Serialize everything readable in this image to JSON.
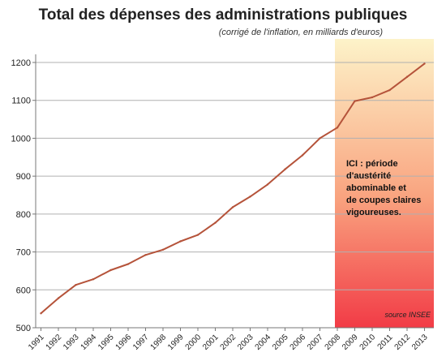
{
  "chart_data": {
    "type": "line",
    "title": "Total des dépenses des administrations publiques",
    "subtitle": "(corrigé de l'inflation, en  milliards d'euros)",
    "xlabel": "",
    "ylabel": "",
    "ylim": [
      500,
      1250
    ],
    "yticks": [
      500,
      600,
      700,
      800,
      900,
      1000,
      1100,
      1200
    ],
    "grid": true,
    "legend": "none",
    "categories": [
      "1991",
      "1992",
      "1993",
      "1994",
      "1995",
      "1996",
      "1997",
      "1998",
      "1999",
      "2000",
      "2001",
      "2002",
      "2003",
      "2004",
      "2005",
      "2006",
      "2007",
      "2008",
      "2009",
      "2010",
      "2011",
      "2012",
      "2013"
    ],
    "series": [
      {
        "values": [
          538,
          578,
          613,
          628,
          652,
          668,
          692,
          706,
          728,
          745,
          777,
          818,
          846,
          878,
          918,
          955,
          1000,
          1028,
          1098,
          1108,
          1127,
          1162,
          1197
        ]
      }
    ],
    "highlight": {
      "from": "2008",
      "to": "2013",
      "note_lines": [
        "ICI : période",
        "d'austérité",
        "abominable et",
        "de coupes claires",
        "vigoureuses."
      ]
    },
    "source": "source INSEE",
    "colors": {
      "line": "#b5533a",
      "highlight_top": "#fdf3c9",
      "highlight_bottom": "#f23b46",
      "grid": "#b0b0b0"
    }
  }
}
